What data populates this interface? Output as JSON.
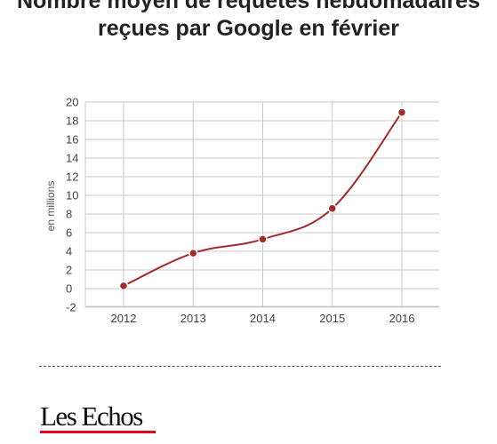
{
  "chart_data": {
    "type": "line",
    "title": "Nombre moyen de requêtes hebdomadaires reçues par Google en février",
    "xlabel": "",
    "ylabel": "en millions",
    "categories": [
      "2012",
      "2013",
      "2014",
      "2015",
      "2016"
    ],
    "series": [
      {
        "values": [
          0.3,
          3.8,
          5.3,
          8.6,
          18.9
        ]
      }
    ],
    "ylim": [
      -2,
      20
    ],
    "yticks": [
      "20",
      "18",
      "16",
      "14",
      "12",
      "10",
      "8",
      "6",
      "4",
      "2",
      "0",
      "-2"
    ],
    "grid": true,
    "line_color": "#a52a2a"
  },
  "footer": {
    "logo_text": "Les Echos",
    "logo_underline_color": "#e2001a"
  }
}
